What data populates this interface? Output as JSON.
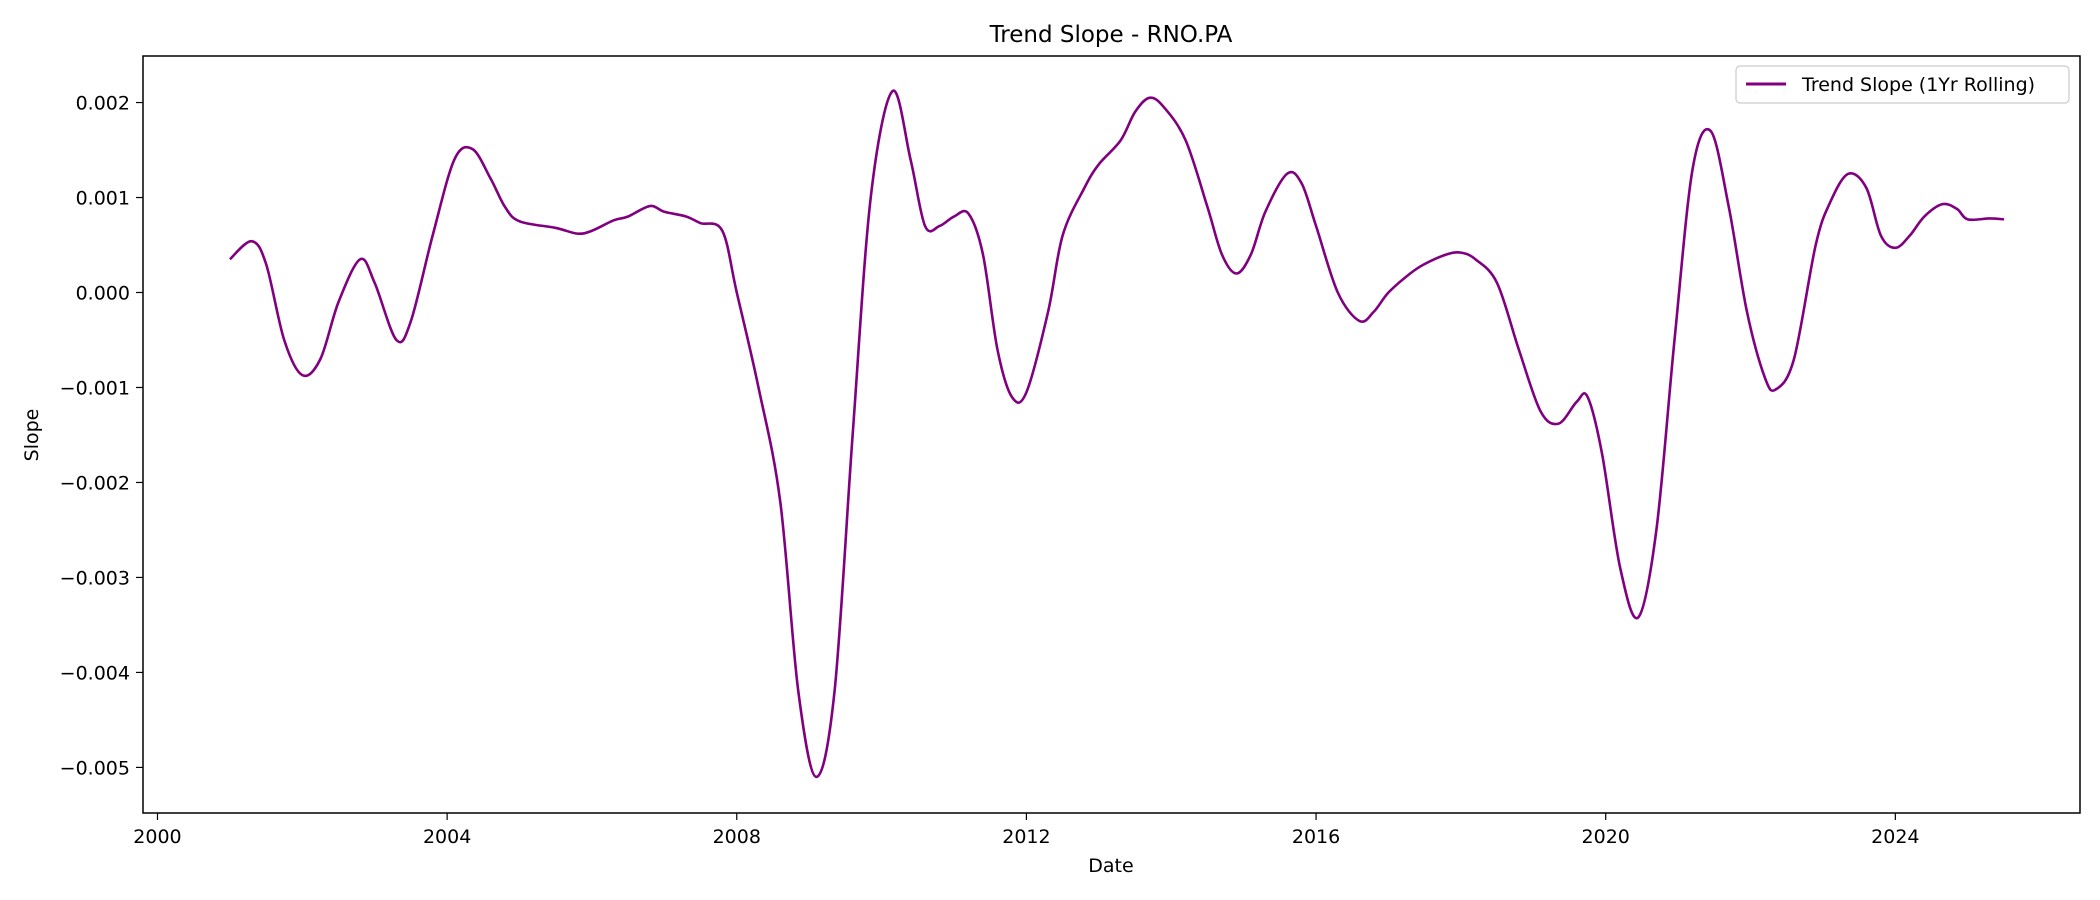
{
  "chart_data": {
    "type": "line",
    "title": "Trend Slope - RNO.PA",
    "xlabel": "Date",
    "ylabel": "Slope",
    "xlim": [
      1999.8,
      2026.55
    ],
    "ylim": [
      -0.00548,
      0.00249
    ],
    "x_ticks": [
      2000,
      2004,
      2008,
      2012,
      2016,
      2020,
      2024
    ],
    "x_tick_labels": [
      "2000",
      "2004",
      "2008",
      "2012",
      "2016",
      "2020",
      "2024"
    ],
    "y_ticks": [
      0.002,
      0.001,
      0.0,
      -0.001,
      -0.002,
      -0.003,
      -0.004,
      -0.005
    ],
    "y_tick_labels": [
      "0.002",
      "0.001",
      "0.000",
      "−0.001",
      "−0.002",
      "−0.003",
      "−0.004",
      "−0.005"
    ],
    "grid": false,
    "legend_position": "upper-right",
    "series": [
      {
        "name": "Trend Slope (1Yr Rolling)",
        "color": "#800080",
        "points": [
          [
            2001.0,
            0.00035
          ],
          [
            2001.3,
            0.00054
          ],
          [
            2001.5,
            0.0003
          ],
          [
            2001.75,
            -0.0005
          ],
          [
            2002.0,
            -0.00087
          ],
          [
            2002.25,
            -0.0007
          ],
          [
            2002.5,
            -0.0001
          ],
          [
            2002.8,
            0.00035
          ],
          [
            2003.0,
            0.0001
          ],
          [
            2003.3,
            -0.0005
          ],
          [
            2003.5,
            -0.0003
          ],
          [
            2003.8,
            0.0006
          ],
          [
            2004.1,
            0.0014
          ],
          [
            2004.35,
            0.00151
          ],
          [
            2004.6,
            0.0012
          ],
          [
            2004.8,
            0.0009
          ],
          [
            2005.0,
            0.00075
          ],
          [
            2005.5,
            0.00068
          ],
          [
            2005.8,
            0.00062
          ],
          [
            2006.0,
            0.00065
          ],
          [
            2006.3,
            0.00076
          ],
          [
            2006.5,
            0.0008
          ],
          [
            2006.8,
            0.00091
          ],
          [
            2007.0,
            0.00085
          ],
          [
            2007.3,
            0.0008
          ],
          [
            2007.5,
            0.00073
          ],
          [
            2007.8,
            0.00065
          ],
          [
            2008.0,
            0.0
          ],
          [
            2008.3,
            -0.001
          ],
          [
            2008.6,
            -0.0022
          ],
          [
            2008.85,
            -0.0042
          ],
          [
            2009.1,
            -0.0051
          ],
          [
            2009.35,
            -0.0042
          ],
          [
            2009.6,
            -0.0015
          ],
          [
            2009.85,
            0.001
          ],
          [
            2010.15,
            0.00212
          ],
          [
            2010.4,
            0.0014
          ],
          [
            2010.6,
            0.0007
          ],
          [
            2010.8,
            0.0007
          ],
          [
            2011.0,
            0.0008
          ],
          [
            2011.2,
            0.00083
          ],
          [
            2011.4,
            0.0004
          ],
          [
            2011.6,
            -0.0006
          ],
          [
            2011.8,
            -0.0011
          ],
          [
            2012.0,
            -0.00105
          ],
          [
            2012.3,
            -0.0002
          ],
          [
            2012.5,
            0.0006
          ],
          [
            2012.8,
            0.0011
          ],
          [
            2013.0,
            0.00135
          ],
          [
            2013.3,
            0.0016
          ],
          [
            2013.5,
            0.0019
          ],
          [
            2013.7,
            0.00205
          ],
          [
            2013.9,
            0.00195
          ],
          [
            2014.2,
            0.0016
          ],
          [
            2014.5,
            0.0009
          ],
          [
            2014.7,
            0.0004
          ],
          [
            2014.9,
            0.0002
          ],
          [
            2015.1,
            0.0004
          ],
          [
            2015.3,
            0.00085
          ],
          [
            2015.6,
            0.00125
          ],
          [
            2015.8,
            0.00115
          ],
          [
            2016.0,
            0.0007
          ],
          [
            2016.3,
            0.0
          ],
          [
            2016.6,
            -0.0003
          ],
          [
            2016.8,
            -0.0002
          ],
          [
            2017.0,
            0.0
          ],
          [
            2017.3,
            0.0002
          ],
          [
            2017.5,
            0.0003
          ],
          [
            2017.8,
            0.0004
          ],
          [
            2018.0,
            0.00042
          ],
          [
            2018.2,
            0.00035
          ],
          [
            2018.5,
            0.0001
          ],
          [
            2018.8,
            -0.0006
          ],
          [
            2019.1,
            -0.00125
          ],
          [
            2019.35,
            -0.00138
          ],
          [
            2019.6,
            -0.00115
          ],
          [
            2019.75,
            -0.0011
          ],
          [
            2019.95,
            -0.0017
          ],
          [
            2020.2,
            -0.0029
          ],
          [
            2020.45,
            -0.00342
          ],
          [
            2020.7,
            -0.0025
          ],
          [
            2020.95,
            -0.0005
          ],
          [
            2021.2,
            0.0013
          ],
          [
            2021.45,
            0.0017
          ],
          [
            2021.7,
            0.0009
          ],
          [
            2021.95,
            -0.0002
          ],
          [
            2022.2,
            -0.0009
          ],
          [
            2022.35,
            -0.00102
          ],
          [
            2022.6,
            -0.0007
          ],
          [
            2022.9,
            0.0005
          ],
          [
            2023.1,
            0.00095
          ],
          [
            2023.35,
            0.00125
          ],
          [
            2023.6,
            0.0011
          ],
          [
            2023.8,
            0.0006
          ],
          [
            2024.0,
            0.00047
          ],
          [
            2024.2,
            0.0006
          ],
          [
            2024.4,
            0.0008
          ],
          [
            2024.65,
            0.00093
          ],
          [
            2024.85,
            0.00088
          ],
          [
            2025.0,
            0.00077
          ],
          [
            2025.3,
            0.00078
          ],
          [
            2025.5,
            0.00077
          ]
        ]
      }
    ]
  }
}
